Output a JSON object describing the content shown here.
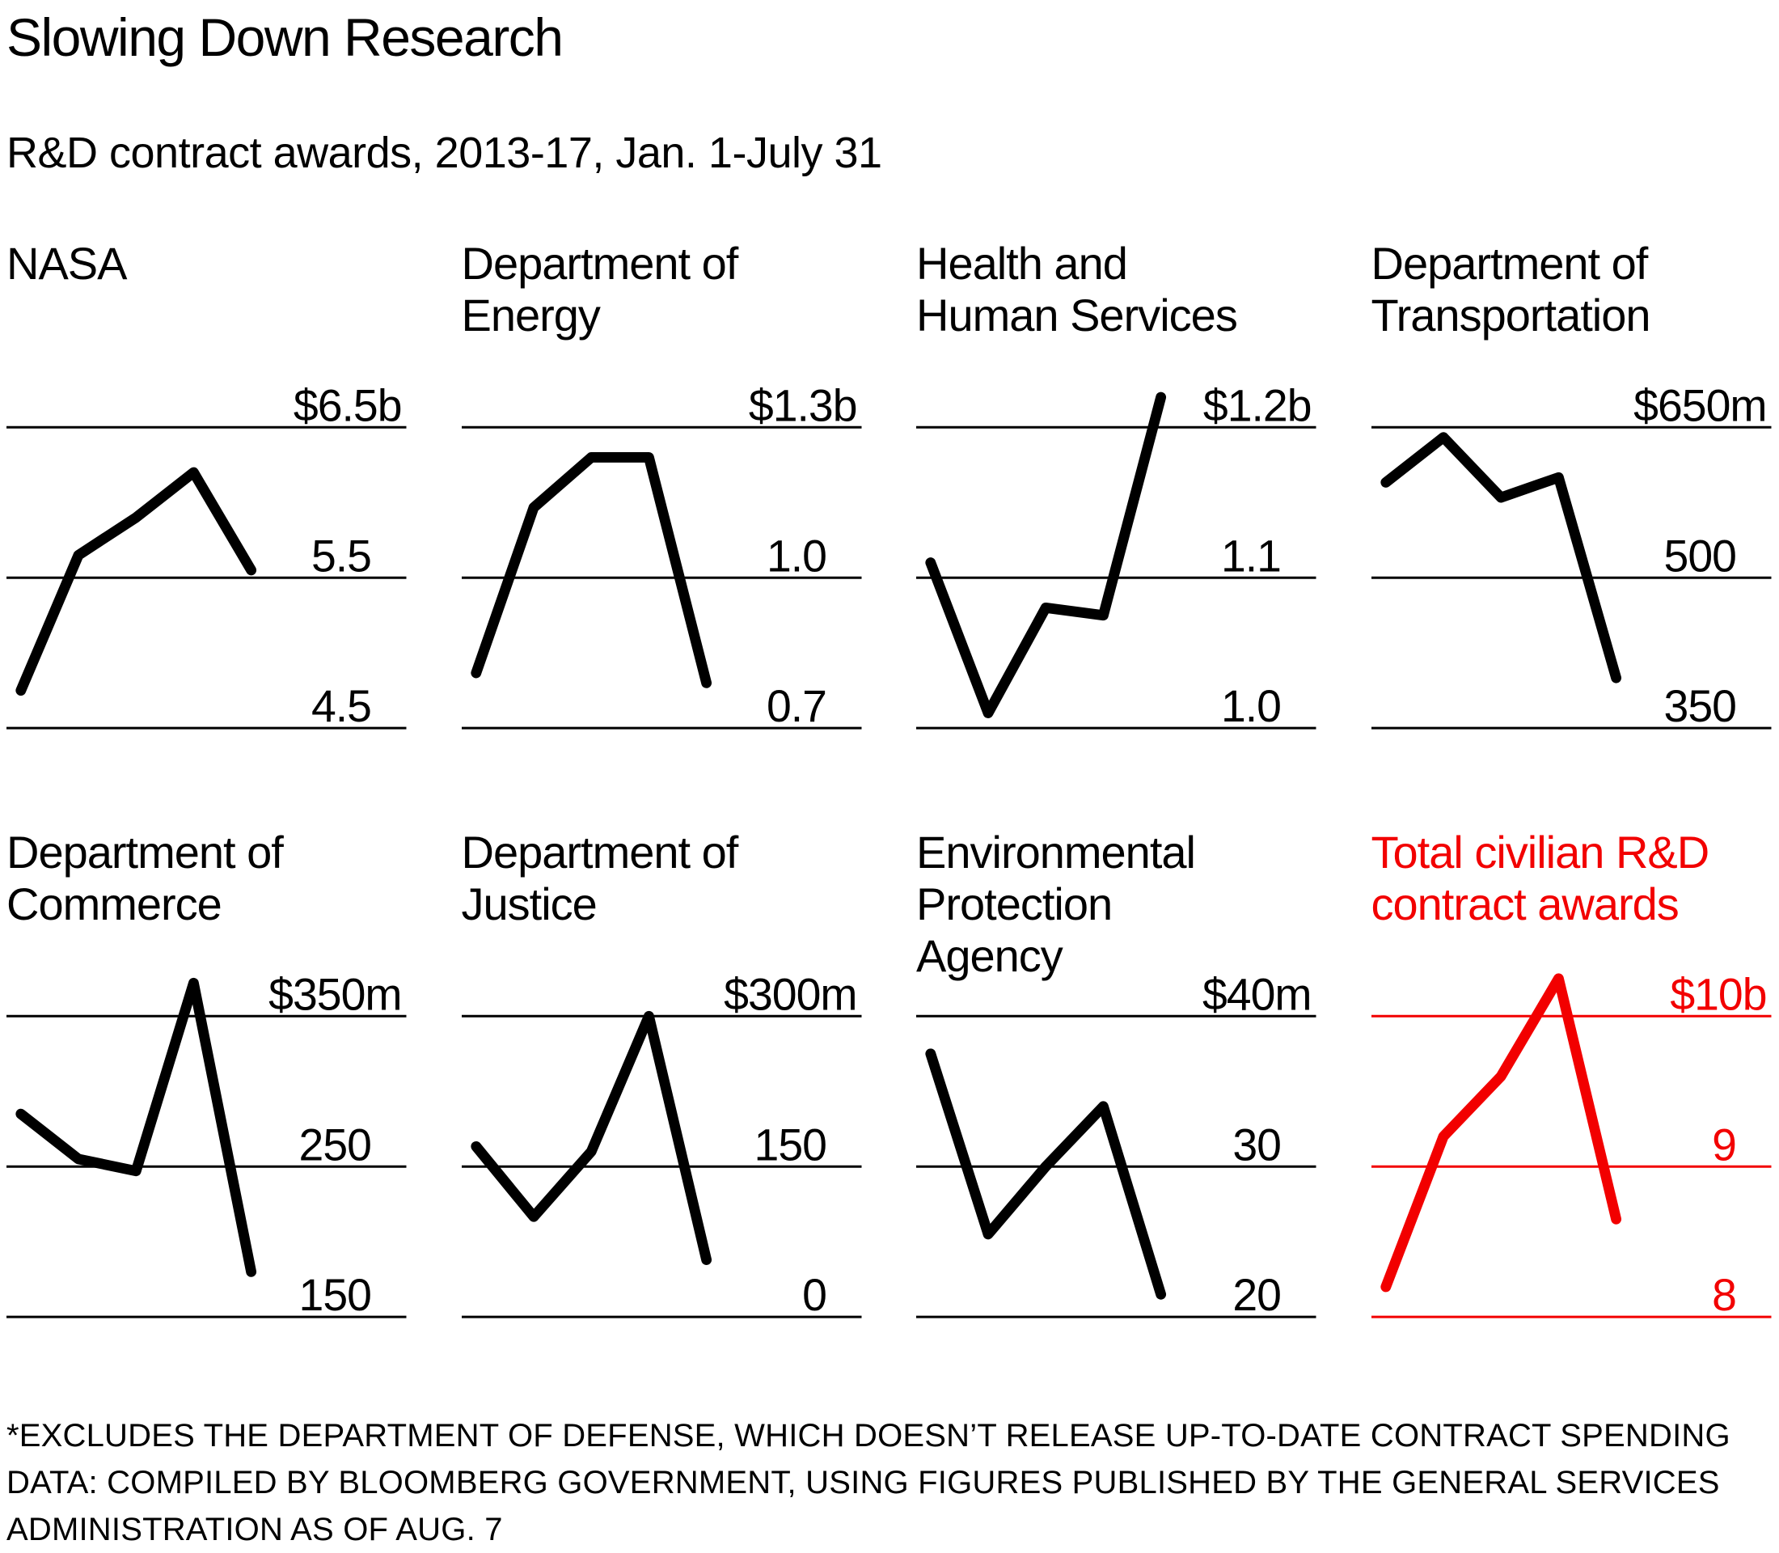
{
  "header": {
    "title": "Slowing Down Research",
    "subtitle": "R&D contract awards, 2013-17, Jan. 1-July 31"
  },
  "colors": {
    "black": "#000000",
    "accent_red": "#f20000"
  },
  "footnote_lines": [
    "*EXCLUDES THE DEPARTMENT OF DEFENSE, WHICH DOESN’T RELEASE UP-TO-DATE CONTRACT SPENDING",
    "DATA: COMPILED BY BLOOMBERG GOVERNMENT, USING FIGURES PUBLISHED BY THE GENERAL SERVICES",
    "ADMINISTRATION AS OF AUG. 7"
  ],
  "chart_data": [
    {
      "type": "line",
      "title_lines": [
        "NASA"
      ],
      "color": "#000000",
      "unit": "billions USD",
      "x": [
        2013,
        2014,
        2015,
        2016,
        2017
      ],
      "values": [
        4.75,
        5.65,
        5.9,
        6.2,
        5.55
      ],
      "axis_labels": [
        "$6.5b",
        "5.5",
        "4.5"
      ],
      "gridline_values": [
        6.5,
        5.5,
        4.5
      ],
      "ylim": [
        4.5,
        6.5
      ],
      "grid": "horizontal-only",
      "legend": "none"
    },
    {
      "type": "line",
      "title_lines": [
        "Department of",
        "Energy"
      ],
      "color": "#000000",
      "unit": "billions USD",
      "x": [
        2013,
        2014,
        2015,
        2016,
        2017
      ],
      "values": [
        0.81,
        1.14,
        1.24,
        1.24,
        0.79
      ],
      "axis_labels": [
        "$1.3b",
        "1.0",
        "0.7"
      ],
      "gridline_values": [
        1.3,
        1.0,
        0.7
      ],
      "ylim": [
        0.7,
        1.3
      ],
      "grid": "horizontal-only",
      "legend": "none"
    },
    {
      "type": "line",
      "title_lines": [
        "Health and",
        "Human Services"
      ],
      "color": "#000000",
      "unit": "billions USD",
      "x": [
        2013,
        2014,
        2015,
        2016,
        2017
      ],
      "values": [
        1.11,
        1.01,
        1.08,
        1.075,
        1.22
      ],
      "axis_labels": [
        "$1.2b",
        "1.1",
        "1.0"
      ],
      "gridline_values": [
        1.2,
        1.1,
        1.0
      ],
      "ylim": [
        1.0,
        1.2
      ],
      "grid": "horizontal-only",
      "legend": "none"
    },
    {
      "type": "line",
      "title_lines": [
        "Department of",
        "Transportation"
      ],
      "color": "#000000",
      "unit": "millions USD",
      "x": [
        2013,
        2014,
        2015,
        2016,
        2017
      ],
      "values": [
        595,
        640,
        580,
        600,
        400
      ],
      "axis_labels": [
        "$650m",
        "500",
        "350"
      ],
      "gridline_values": [
        650,
        500,
        350
      ],
      "ylim": [
        350,
        650
      ],
      "grid": "horizontal-only",
      "legend": "none"
    },
    {
      "type": "line",
      "title_lines": [
        "Department of",
        "Commerce"
      ],
      "color": "#000000",
      "unit": "millions USD",
      "x": [
        2013,
        2014,
        2015,
        2016,
        2017
      ],
      "values": [
        285,
        255,
        247,
        372,
        180
      ],
      "axis_labels": [
        "$350m",
        "250",
        "150"
      ],
      "gridline_values": [
        350,
        250,
        150
      ],
      "ylim": [
        150,
        350
      ],
      "grid": "horizontal-only",
      "legend": "none"
    },
    {
      "type": "line",
      "title_lines": [
        "Department of",
        "Justice"
      ],
      "color": "#000000",
      "unit": "millions USD",
      "x": [
        2013,
        2014,
        2015,
        2016,
        2017
      ],
      "values": [
        170,
        100,
        165,
        300,
        57
      ],
      "axis_labels": [
        "$300m",
        "150",
        "0"
      ],
      "gridline_values": [
        300,
        150,
        0
      ],
      "ylim": [
        0,
        300
      ],
      "grid": "horizontal-only",
      "legend": "none"
    },
    {
      "type": "line",
      "title_lines": [
        "Environmental",
        "Protection",
        "Agency"
      ],
      "color": "#000000",
      "unit": "millions USD",
      "x": [
        2013,
        2014,
        2015,
        2016,
        2017
      ],
      "values": [
        37.5,
        25.5,
        30,
        34,
        21.5
      ],
      "axis_labels": [
        "$40m",
        "30",
        "20"
      ],
      "gridline_values": [
        40,
        30,
        20
      ],
      "ylim": [
        20,
        40
      ],
      "grid": "horizontal-only",
      "legend": "none"
    },
    {
      "type": "line",
      "title_lines": [
        "Total civilian R&D",
        "contract awards"
      ],
      "color": "#f20000",
      "unit": "billions USD",
      "x": [
        2013,
        2014,
        2015,
        2016,
        2017
      ],
      "values": [
        8.2,
        9.2,
        9.6,
        10.25,
        8.65
      ],
      "axis_labels": [
        "$10b",
        "9",
        "8"
      ],
      "gridline_values": [
        10,
        9,
        8
      ],
      "ylim": [
        8,
        10
      ],
      "grid": "horizontal-only",
      "legend": "none"
    }
  ]
}
